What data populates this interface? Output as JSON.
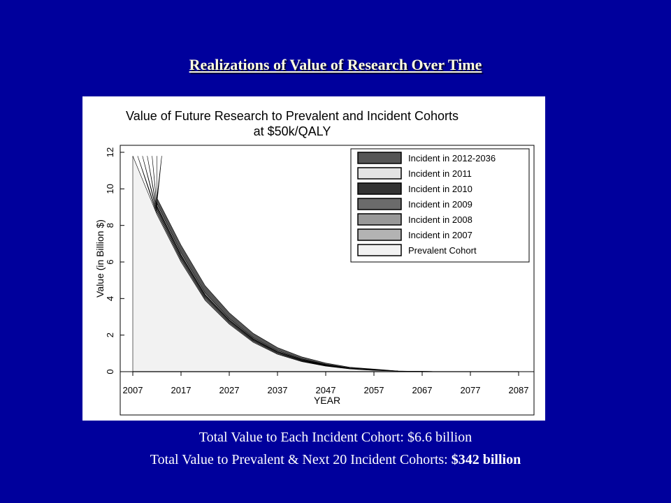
{
  "slide": {
    "title": "Realizations of Value of Research Over Time",
    "footer_line1": "Total Value to Each Incident Cohort: $6.6 billion",
    "footer_line2_prefix": "Total Value to Prevalent & Next 20 Incident Cohorts: ",
    "footer_line2_bold": "$342 billion",
    "background_color": "#00009c",
    "title_color": "#ffffe0"
  },
  "chart_data": {
    "type": "area",
    "title": "Value of Future Research to Prevalent and Incident Cohorts",
    "subtitle": "at $50k/QALY",
    "xlabel": "YEAR",
    "ylabel": "Value (in Billion $)",
    "xlim": [
      2007,
      2087
    ],
    "ylim": [
      0,
      12
    ],
    "xticks": [
      2007,
      2017,
      2027,
      2037,
      2047,
      2057,
      2067,
      2077,
      2087
    ],
    "yticks": [
      0,
      2,
      4,
      6,
      8,
      10,
      12
    ],
    "grid": false,
    "legend_position": "top-right",
    "x": [
      2007,
      2012,
      2017,
      2022,
      2027,
      2032,
      2037,
      2042,
      2047,
      2052,
      2057,
      2062,
      2067,
      2072,
      2077,
      2082,
      2087
    ],
    "series": [
      {
        "name": "Prevalent Cohort",
        "color": "#f2f2f2",
        "start": 2007,
        "values": [
          11.8,
          8.6,
          6.0,
          3.9,
          2.6,
          1.6,
          0.95,
          0.55,
          0.3,
          0.15,
          0.07,
          0.03,
          0.01,
          0,
          0,
          0,
          0
        ]
      },
      {
        "name": "Incident in 2007",
        "color": "#b3b3b3",
        "start": 2008,
        "values": [
          0,
          0.12,
          0.1,
          0.08,
          0.06,
          0.05,
          0.04,
          0.03,
          0.02,
          0.01,
          0.01,
          0,
          0,
          0,
          0,
          0,
          0
        ]
      },
      {
        "name": "Incident in 2008",
        "color": "#999999",
        "start": 2009,
        "values": [
          0,
          0.12,
          0.1,
          0.08,
          0.06,
          0.05,
          0.04,
          0.03,
          0.02,
          0.01,
          0.01,
          0,
          0,
          0,
          0,
          0,
          0
        ]
      },
      {
        "name": "Incident in 2009",
        "color": "#6b6b6b",
        "start": 2010,
        "values": [
          0,
          0.12,
          0.1,
          0.08,
          0.06,
          0.05,
          0.04,
          0.03,
          0.02,
          0.01,
          0.01,
          0,
          0,
          0,
          0,
          0,
          0
        ]
      },
      {
        "name": "Incident in 2010",
        "color": "#333333",
        "start": 2011,
        "values": [
          0,
          0.12,
          0.1,
          0.08,
          0.06,
          0.05,
          0.04,
          0.03,
          0.02,
          0.01,
          0.01,
          0,
          0,
          0,
          0,
          0,
          0
        ]
      },
      {
        "name": "Incident in 2011",
        "color": "#e3e3e3",
        "start": 2012,
        "values": [
          0,
          0.12,
          0.1,
          0.08,
          0.06,
          0.05,
          0.04,
          0.03,
          0.02,
          0.01,
          0.01,
          0,
          0,
          0,
          0,
          0,
          0
        ]
      },
      {
        "name": "Incident in 2012-2036",
        "color": "#555555",
        "start": 2013,
        "values": [
          0,
          0.3,
          0.42,
          0.4,
          0.32,
          0.24,
          0.17,
          0.11,
          0.07,
          0.04,
          0.02,
          0.01,
          0,
          0,
          0,
          0,
          0
        ]
      }
    ],
    "legend_order": [
      "Incident in 2012-2036",
      "Incident in 2011",
      "Incident in 2010",
      "Incident in 2009",
      "Incident in 2008",
      "Incident in 2007",
      "Prevalent Cohort"
    ]
  }
}
